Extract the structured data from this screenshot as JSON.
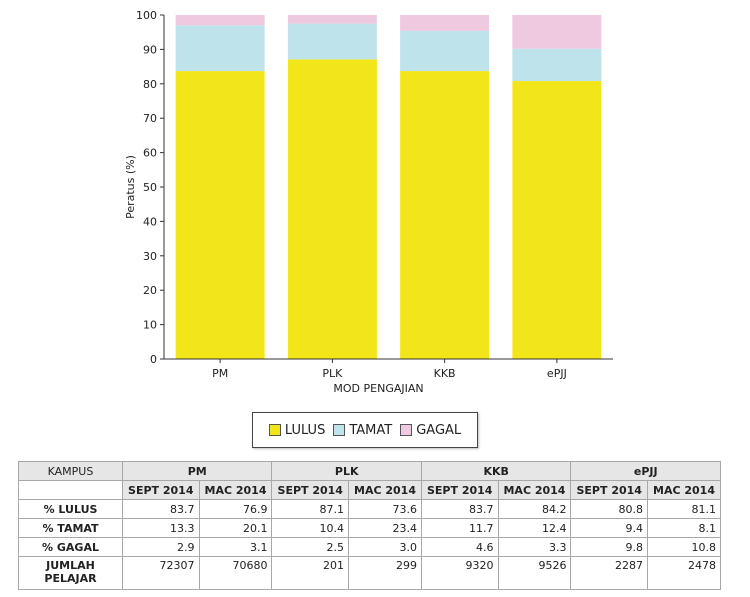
{
  "chart_data": {
    "type": "bar",
    "stacked": true,
    "categories": [
      "PM",
      "PLK",
      "KKB",
      "ePJJ"
    ],
    "series": [
      {
        "name": "LULUS",
        "values": [
          83.7,
          87.1,
          83.7,
          80.8
        ],
        "color": "#f2e61a"
      },
      {
        "name": "TAMAT",
        "values": [
          13.3,
          10.4,
          11.7,
          9.4
        ],
        "color": "#bfe3ea"
      },
      {
        "name": "GAGAL",
        "values": [
          2.9,
          2.5,
          4.6,
          9.8
        ],
        "color": "#eec9e0"
      }
    ],
    "xlabel": "MOD PENGAJIAN",
    "ylabel": "Peratus (%)",
    "ylim": [
      0,
      100
    ],
    "yticks": [
      0,
      10,
      20,
      30,
      40,
      50,
      60,
      70,
      80,
      90,
      100
    ],
    "grid": false,
    "legend_position": "bottom"
  },
  "table": {
    "kampus_label": "KAMPUS",
    "groups": [
      "PM",
      "PLK",
      "KKB",
      "ePJJ"
    ],
    "subheaders": [
      "SEPT 2014",
      "MAC 2014",
      "SEPT 2014",
      "MAC 2014",
      "SEPT 2014",
      "MAC 2014",
      "SEPT 2014",
      "MAC 2014"
    ],
    "rows": [
      {
        "label": "% LULUS",
        "values": [
          "83.7",
          "76.9",
          "87.1",
          "73.6",
          "83.7",
          "84.2",
          "80.8",
          "81.1"
        ]
      },
      {
        "label": "% TAMAT",
        "values": [
          "13.3",
          "20.1",
          "10.4",
          "23.4",
          "11.7",
          "12.4",
          "9.4",
          "8.1"
        ]
      },
      {
        "label": "% GAGAL",
        "values": [
          "2.9",
          "3.1",
          "2.5",
          "3.0",
          "4.6",
          "3.3",
          "9.8",
          "10.8"
        ]
      },
      {
        "label": "JUMLAH PELAJAR",
        "values": [
          "72307",
          "70680",
          "201",
          "299",
          "9320",
          "9526",
          "2287",
          "2478"
        ]
      }
    ]
  }
}
